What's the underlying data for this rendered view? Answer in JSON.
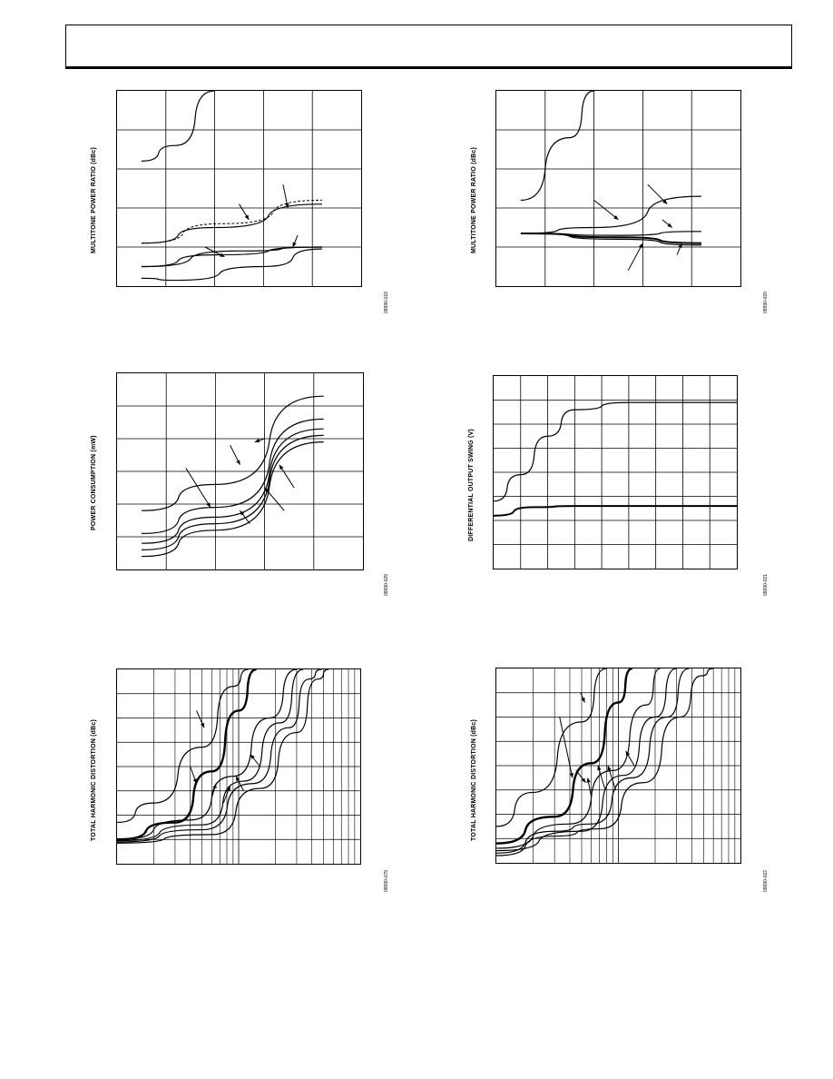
{
  "header": {
    "title": ""
  },
  "charts": [
    {
      "id": "c1",
      "type": "line",
      "ylabel": "MULTITONE POWER RATIO (dBc)",
      "fig_id": "09990-019",
      "xlog": false,
      "xlim": [
        0,
        5
      ],
      "ylim": [
        0,
        5
      ],
      "x_grid": [
        1,
        2,
        3,
        4
      ],
      "y_grid": [
        1,
        2,
        3,
        4
      ],
      "series": [
        {
          "values": [
            [
              0.5,
              3.2
            ],
            [
              1.2,
              3.6
            ],
            [
              2.0,
              5.0
            ]
          ],
          "width": 1.2
        },
        {
          "values": [
            [
              0.5,
              1.1
            ],
            [
              2.0,
              1.5
            ],
            [
              4.2,
              2.1
            ]
          ],
          "width": 1.2
        },
        {
          "values": [
            [
              0.5,
              1.1
            ],
            [
              2.2,
              1.6
            ],
            [
              4.2,
              2.2
            ]
          ],
          "width": 1.0,
          "dash": true
        },
        {
          "values": [
            [
              0.5,
              0.5
            ],
            [
              2.5,
              0.9
            ],
            [
              4.2,
              1.0
            ]
          ],
          "width": 1.2
        },
        {
          "values": [
            [
              0.5,
              0.5
            ],
            [
              2.0,
              0.8
            ],
            [
              4.2,
              1.0
            ]
          ],
          "width": 1.2
        },
        {
          "values": [
            [
              0.5,
              0.2
            ],
            [
              1.2,
              0.15
            ],
            [
              3.0,
              0.5
            ],
            [
              4.2,
              0.95
            ]
          ],
          "width": 1.2
        }
      ],
      "arrows": [
        [
          [
            2.5,
            2.1
          ],
          [
            2.7,
            1.7
          ]
        ],
        [
          [
            3.4,
            2.6
          ],
          [
            3.5,
            2.0
          ]
        ],
        [
          [
            1.8,
            1.0
          ],
          [
            2.2,
            0.75
          ]
        ],
        [
          [
            3.7,
            1.3
          ],
          [
            3.6,
            1.0
          ]
        ]
      ]
    },
    {
      "id": "c2",
      "type": "line",
      "ylabel": "MULTITONE POWER RATIO (dBc)",
      "fig_id": "09990-020",
      "xlog": false,
      "xlim": [
        0,
        5
      ],
      "ylim": [
        0,
        5
      ],
      "x_grid": [
        1,
        2,
        3,
        4
      ],
      "y_grid": [
        1,
        2,
        3,
        4
      ],
      "series": [
        {
          "values": [
            [
              0.5,
              2.2
            ],
            [
              1.5,
              3.8
            ],
            [
              2.0,
              5.0
            ]
          ],
          "width": 1.2
        },
        {
          "values": [
            [
              0.5,
              1.35
            ],
            [
              2.0,
              1.5
            ],
            [
              4.2,
              2.3
            ]
          ],
          "width": 1.2
        },
        {
          "values": [
            [
              0.5,
              1.35
            ],
            [
              2.5,
              1.3
            ],
            [
              4.2,
              1.4
            ]
          ],
          "width": 1.2
        },
        {
          "values": [
            [
              0.5,
              1.35
            ],
            [
              2.5,
              1.25
            ],
            [
              4.2,
              1.1
            ]
          ],
          "width": 2.0
        },
        {
          "values": [
            [
              0.5,
              1.35
            ],
            [
              2.5,
              1.2
            ],
            [
              4.2,
              1.05
            ]
          ],
          "width": 1.2
        }
      ],
      "arrows": [
        [
          [
            2.0,
            2.2
          ],
          [
            2.5,
            1.7
          ]
        ],
        [
          [
            3.1,
            2.6
          ],
          [
            3.5,
            2.1
          ]
        ],
        [
          [
            3.4,
            1.7
          ],
          [
            3.6,
            1.5
          ]
        ],
        [
          [
            2.7,
            0.4
          ],
          [
            3.0,
            1.1
          ]
        ],
        [
          [
            3.7,
            0.8
          ],
          [
            3.8,
            1.1
          ]
        ]
      ]
    },
    {
      "id": "c3",
      "type": "line",
      "ylabel": "POWER CONSUMPTION (mW)",
      "fig_id": "09990-029",
      "xlog": false,
      "xlim": [
        0,
        5
      ],
      "ylim": [
        0,
        6
      ],
      "x_grid": [
        1,
        2,
        3,
        4
      ],
      "y_grid": [
        1,
        2,
        3,
        4,
        5
      ],
      "series": [
        {
          "values": [
            [
              0.5,
              1.8
            ],
            [
              2.0,
              2.6
            ],
            [
              4.2,
              5.3
            ]
          ],
          "width": 1.2
        },
        {
          "values": [
            [
              0.5,
              1.1
            ],
            [
              2.0,
              1.9
            ],
            [
              4.2,
              4.6
            ]
          ],
          "width": 1.2
        },
        {
          "values": [
            [
              0.5,
              0.8
            ],
            [
              2.0,
              1.6
            ],
            [
              4.2,
              4.3
            ]
          ],
          "width": 1.2
        },
        {
          "values": [
            [
              0.5,
              0.6
            ],
            [
              2.0,
              1.4
            ],
            [
              4.2,
              4.1
            ]
          ],
          "width": 1.2
        },
        {
          "values": [
            [
              0.5,
              0.4
            ],
            [
              2.0,
              1.2
            ],
            [
              4.2,
              3.9
            ]
          ],
          "width": 1.2
        }
      ],
      "arrows": [
        [
          [
            2.3,
            3.8
          ],
          [
            2.5,
            3.2
          ]
        ],
        [
          [
            3.6,
            2.5
          ],
          [
            3.3,
            3.2
          ]
        ],
        [
          [
            1.4,
            3.1
          ],
          [
            1.9,
            1.9
          ]
        ],
        [
          [
            3.4,
            1.8
          ],
          [
            3.0,
            2.5
          ]
        ],
        [
          [
            2.7,
            1.4
          ],
          [
            2.5,
            1.8
          ]
        ],
        [
          [
            3.0,
            4.0
          ],
          [
            2.8,
            3.9
          ]
        ]
      ]
    },
    {
      "id": "c4",
      "type": "line",
      "ylabel": "DIFFERENTIAL OUTPUT SWING (V)",
      "fig_id": "09990-021",
      "xlog": false,
      "xlim": [
        0,
        9
      ],
      "ylim": [
        0,
        8
      ],
      "x_grid": [
        1,
        2,
        3,
        4,
        5,
        6,
        7,
        8
      ],
      "y_grid": [
        1,
        2,
        3,
        4,
        5,
        6,
        7
      ],
      "series": [
        {
          "values": [
            [
              0,
              2.8
            ],
            [
              1.0,
              3.9
            ],
            [
              2.0,
              5.5
            ],
            [
              3.0,
              6.6
            ],
            [
              5.0,
              6.9
            ],
            [
              9.0,
              6.9
            ]
          ],
          "width": 1.2
        },
        {
          "values": [
            [
              0,
              2.2
            ],
            [
              1.5,
              2.55
            ],
            [
              3.0,
              2.6
            ],
            [
              9.0,
              2.6
            ]
          ],
          "width": 2.0
        }
      ],
      "arrows": []
    },
    {
      "id": "c5",
      "type": "line",
      "ylabel": "TOTAL HARMONIC DISTORTION (dBc)",
      "fig_id": "09990-079",
      "xlog": true,
      "xlim": [
        1,
        100
      ],
      "ylim": [
        0,
        8
      ],
      "x_grid": [
        2,
        3,
        4,
        5,
        6,
        7,
        8,
        9,
        10,
        20,
        30,
        40,
        50,
        60,
        70,
        80,
        90
      ],
      "y_grid": [
        1,
        2,
        3,
        4,
        5,
        6,
        7
      ],
      "series": [
        {
          "values": [
            [
              1,
              1.7
            ],
            [
              2,
              2.5
            ],
            [
              5,
              4.8
            ],
            [
              9,
              7.3
            ],
            [
              12,
              8.0
            ]
          ],
          "width": 1.2
        },
        {
          "values": [
            [
              1,
              1.0
            ],
            [
              3,
              1.7
            ],
            [
              6,
              3.8
            ],
            [
              10,
              6.3
            ],
            [
              14,
              8.0
            ]
          ],
          "width": 2.4
        },
        {
          "values": [
            [
              1,
              1.0
            ],
            [
              4,
              1.8
            ],
            [
              9,
              3.6
            ],
            [
              18,
              6.0
            ],
            [
              30,
              8.0
            ]
          ],
          "width": 1.2
        },
        {
          "values": [
            [
              1,
              0.95
            ],
            [
              5,
              1.6
            ],
            [
              11,
              3.4
            ],
            [
              22,
              5.8
            ],
            [
              34,
              8.0
            ]
          ],
          "width": 1.2
        },
        {
          "values": [
            [
              1,
              0.9
            ],
            [
              5,
              1.4
            ],
            [
              13,
              3.3
            ],
            [
              26,
              5.6
            ],
            [
              38,
              7.6
            ],
            [
              48,
              8.0
            ]
          ],
          "width": 1.2
        },
        {
          "values": [
            [
              1,
              0.85
            ],
            [
              6,
              1.2
            ],
            [
              15,
              3.1
            ],
            [
              30,
              5.4
            ],
            [
              45,
              7.6
            ],
            [
              55,
              8.0
            ]
          ],
          "width": 1.2
        }
      ],
      "arrows": [
        [
          [
            4.5,
            6.3
          ],
          [
            5.2,
            5.6
          ]
        ],
        [
          [
            4.0,
            4.0
          ],
          [
            4.5,
            3.3
          ]
        ],
        [
          [
            6.0,
            2.7
          ],
          [
            6.5,
            3.3
          ]
        ],
        [
          [
            7.5,
            2.5
          ],
          [
            8.5,
            3.2
          ]
        ],
        [
          [
            11,
            3.0
          ],
          [
            9.5,
            3.6
          ]
        ],
        [
          [
            15,
            4.0
          ],
          [
            12.5,
            4.5
          ]
        ]
      ]
    },
    {
      "id": "c6",
      "type": "line",
      "ylabel": "TOTAL HARMONIC DISTORTION (dBc)",
      "fig_id": "09990-022",
      "xlog": true,
      "xlim": [
        1,
        100
      ],
      "ylim": [
        0,
        8
      ],
      "x_grid": [
        2,
        3,
        4,
        5,
        6,
        7,
        8,
        9,
        10,
        20,
        30,
        40,
        50,
        60,
        70,
        80,
        90
      ],
      "y_grid": [
        1,
        2,
        3,
        4,
        5,
        6,
        7
      ],
      "series": [
        {
          "values": [
            [
              1,
              1.5
            ],
            [
              2,
              2.9
            ],
            [
              5,
              5.8
            ],
            [
              8,
              8.0
            ]
          ],
          "width": 1.2
        },
        {
          "values": [
            [
              1,
              0.8
            ],
            [
              3,
              1.9
            ],
            [
              6,
              4.1
            ],
            [
              10,
              6.6
            ],
            [
              13,
              8.0
            ]
          ],
          "width": 2.4
        },
        {
          "values": [
            [
              1,
              0.6
            ],
            [
              4,
              1.6
            ],
            [
              9,
              3.8
            ],
            [
              17,
              6.5
            ],
            [
              22,
              8.0
            ]
          ],
          "width": 1.2
        },
        {
          "values": [
            [
              1,
              0.5
            ],
            [
              5,
              1.3
            ],
            [
              11,
              3.6
            ],
            [
              20,
              6.0
            ],
            [
              30,
              8.0
            ]
          ],
          "width": 1.2
        },
        {
          "values": [
            [
              1,
              0.4
            ],
            [
              3,
              1.3
            ],
            [
              6,
              1.6
            ],
            [
              13,
              3.5
            ],
            [
              25,
              6.0
            ],
            [
              38,
              8.0
            ]
          ],
          "width": 1.2
        },
        {
          "values": [
            [
              1,
              0.3
            ],
            [
              3,
              1.1
            ],
            [
              7,
              1.4
            ],
            [
              16,
              3.3
            ],
            [
              32,
              6.0
            ],
            [
              48,
              7.7
            ],
            [
              60,
              8.0
            ]
          ],
          "width": 1.2
        }
      ],
      "arrows": [
        [
          [
            4.9,
            7.0
          ],
          [
            5.3,
            6.6
          ]
        ],
        [
          [
            3.3,
            6.0
          ],
          [
            4.2,
            3.5
          ]
        ],
        [
          [
            4.5,
            3.8
          ],
          [
            5.4,
            3.3
          ]
        ],
        [
          [
            6.0,
            2.7
          ],
          [
            5.6,
            3.5
          ]
        ],
        [
          [
            7.8,
            3.0
          ],
          [
            6.8,
            4.0
          ]
        ],
        [
          [
            9.5,
            3.0
          ],
          [
            8.2,
            4.0
          ]
        ],
        [
          [
            13.5,
            4.0
          ],
          [
            11.5,
            4.6
          ]
        ]
      ]
    }
  ]
}
